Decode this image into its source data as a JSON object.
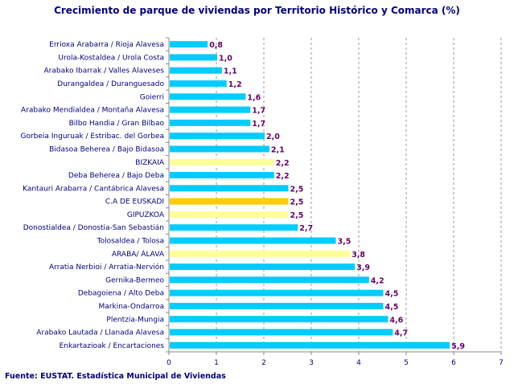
{
  "chart_data": {
    "type": "bar",
    "orientation": "horizontal",
    "title": "Crecimiento de parque de viviendas por Territorio Histórico y Comarca (%)",
    "source": "Fuente: EUSTAT. Estadística Municipal de Viviendas",
    "categories": [
      "Errioxa Arabarra / Rioja Alavesa",
      "Urola-Kostaldea / Urola Costa",
      "Arabako Ibarrak / Valles Alaveses",
      "Durangaldea / Duranguesado",
      "Goierri",
      "Arabako Mendialdea / Montaña Alavesa",
      "Bilbo Handia / Gran Bilbao",
      "Gorbeia Inguruak / Estribac. del Gorbea",
      "Bidasoa Beherea / Bajo Bidasoa",
      "BIZKAIA",
      "Deba Beherea / Bajo Deba",
      "Kantauri Arabarra / Cantábrica Alavesa",
      "C.A DE EUSKADI",
      "GIPUZKOA",
      "Donostialdea / Donostia-San Sebastián",
      "Tolosaldea / Tolosa",
      "ARABA/ ÁLAVA",
      "Arratia Nerbioi / Arratia-Nervión",
      "Gernika-Bermeo",
      "Debagoiena / Alto Deba",
      "Markina-Ondarroa",
      "Plentzia-Mungia",
      "Arabako Lautada / Llanada Alavesa",
      "Enkartazioak / Encartaciones"
    ],
    "values": [
      0.8,
      1.0,
      1.1,
      1.2,
      1.6,
      1.7,
      1.7,
      2.0,
      2.1,
      2.2,
      2.2,
      2.5,
      2.5,
      2.5,
      2.7,
      3.5,
      3.8,
      3.9,
      4.2,
      4.5,
      4.5,
      4.6,
      4.7,
      5.9
    ],
    "value_labels": [
      "0,8",
      "1,0",
      "1,1",
      "1,2",
      "1,6",
      "1,7",
      "1,7",
      "2,0",
      "2,1",
      "2,2",
      "2,2",
      "2,5",
      "2,5",
      "2,5",
      "2,7",
      "3,5",
      "3,8",
      "3,9",
      "4,2",
      "4,5",
      "4,5",
      "4,6",
      "4,7",
      "5,9"
    ],
    "bar_kind": [
      "c",
      "c",
      "c",
      "c",
      "c",
      "c",
      "c",
      "c",
      "c",
      "t",
      "c",
      "c",
      "e",
      "t",
      "c",
      "c",
      "t",
      "c",
      "c",
      "c",
      "c",
      "c",
      "c",
      "c"
    ],
    "colors": {
      "c": "#00CCFF",
      "t": "#FFFF99",
      "e": "#FFCC00"
    },
    "xlim": [
      0,
      7
    ],
    "xticks": [
      "0",
      "1",
      "2",
      "3",
      "4",
      "5",
      "6",
      "7"
    ],
    "grid": true
  }
}
